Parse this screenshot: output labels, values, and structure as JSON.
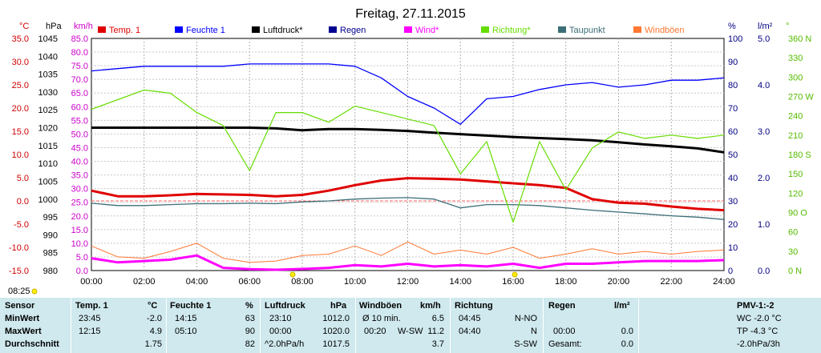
{
  "title": "Freitag, 27.11.2015",
  "axis_units": {
    "temp": "°C",
    "press": "hPa",
    "wind": "km/h",
    "pct": "%",
    "rain": "l/m²",
    "dir": "°"
  },
  "time_stamp": "08:25",
  "legend": [
    {
      "label": "Temp. 1",
      "color": "#e00000"
    },
    {
      "label": "Feuchte 1",
      "color": "#0000ff"
    },
    {
      "label": "Luftdruck*",
      "color": "#000000"
    },
    {
      "label": "Regen",
      "color": "#000090"
    },
    {
      "label": "Wind*",
      "color": "#ff00ff"
    },
    {
      "label": "Richtung*",
      "color": "#66dd00"
    },
    {
      "label": "Taupunkt",
      "color": "#3c6e78"
    },
    {
      "label": "Windböen",
      "color": "#ff7733"
    }
  ],
  "chart_data": {
    "type": "line",
    "title": "Freitag, 27.11.2015",
    "x_ticks": [
      "00:00",
      "02:00",
      "04:00",
      "06:00",
      "08:00",
      "10:00",
      "12:00",
      "14:00",
      "16:00",
      "18:00",
      "20:00",
      "22:00",
      "24:00"
    ],
    "axes": {
      "temp": {
        "label": "°C",
        "ticks": [
          "35.0",
          "30.0",
          "25.0",
          "20.0",
          "15.0",
          "10.0",
          "5.0",
          "0.0",
          "-5.0",
          "-10.0",
          "-15.0"
        ],
        "range": [
          -15,
          35
        ]
      },
      "press": {
        "label": "hPa",
        "ticks": [
          "1045",
          "1040",
          "1035",
          "1030",
          "1025",
          "1020",
          "1015",
          "1010",
          "1005",
          "1000",
          "995",
          "990",
          "985",
          "980"
        ],
        "range": [
          980,
          1045
        ]
      },
      "wind": {
        "label": "km/h",
        "ticks": [
          "85.0",
          "80.0",
          "75.0",
          "70.0",
          "65.0",
          "60.0",
          "55.0",
          "50.0",
          "45.0",
          "40.0",
          "35.0",
          "30.0",
          "25.0",
          "20.0",
          "15.0",
          "10.0",
          "5.0",
          "0.0"
        ],
        "range": [
          0,
          85
        ]
      },
      "pct": {
        "label": "%",
        "ticks": [
          "100",
          "90",
          "80",
          "70",
          "60",
          "50",
          "40",
          "30",
          "20",
          "10",
          "0"
        ],
        "range": [
          0,
          100
        ]
      },
      "rain": {
        "label": "l/m²",
        "ticks": [
          "5.0",
          "4.0",
          "3.0",
          "2.0",
          "1.0",
          "0.0"
        ],
        "range": [
          0,
          5
        ]
      },
      "dir": {
        "label": "°",
        "ticks": [
          "360 N",
          "330",
          "300",
          "270 W",
          "240",
          "210",
          "180 S",
          "150",
          "120",
          "90 O",
          "60",
          "30",
          "0 N"
        ],
        "range": [
          0,
          360
        ]
      }
    },
    "series": [
      {
        "name": "Temp. 1",
        "axis": "temp",
        "x": [
          0,
          1,
          2,
          3,
          4,
          5,
          6,
          7,
          8,
          9,
          10,
          11,
          12,
          13,
          14,
          15,
          16,
          17,
          18,
          19,
          20,
          21,
          22,
          23,
          24
        ],
        "y": [
          2.2,
          1.0,
          1.0,
          1.2,
          1.5,
          1.4,
          1.3,
          1.0,
          1.3,
          2.2,
          3.4,
          4.4,
          4.9,
          4.8,
          4.6,
          4.2,
          3.8,
          3.4,
          2.8,
          0.4,
          -0.4,
          -0.6,
          -1.2,
          -1.7,
          -2.0
        ]
      },
      {
        "name": "Feuchte 1",
        "axis": "pct",
        "x": [
          0,
          1,
          2,
          3,
          4,
          5,
          6,
          7,
          8,
          9,
          10,
          11,
          12,
          13,
          14,
          15,
          16,
          17,
          18,
          19,
          20,
          21,
          22,
          23,
          24
        ],
        "y": [
          86,
          87,
          88,
          88,
          88,
          88,
          89,
          89,
          89,
          89,
          88,
          83,
          75,
          70,
          63,
          74,
          75,
          78,
          80,
          81,
          79,
          80,
          82,
          82,
          83
        ]
      },
      {
        "name": "Luftdruck*",
        "axis": "press",
        "x": [
          0,
          1,
          2,
          3,
          4,
          5,
          6,
          7,
          8,
          9,
          10,
          11,
          12,
          13,
          14,
          15,
          16,
          17,
          18,
          19,
          20,
          21,
          22,
          23,
          24
        ],
        "y": [
          1020.0,
          1020.0,
          1020.0,
          1020.0,
          1020.0,
          1020.0,
          1020.0,
          1019.8,
          1019.3,
          1019.6,
          1019.6,
          1019.4,
          1019.1,
          1018.6,
          1018.2,
          1017.8,
          1017.4,
          1017.1,
          1016.8,
          1016.5,
          1015.9,
          1015.3,
          1014.8,
          1014.2,
          1013.1
        ]
      },
      {
        "name": "Taupunkt",
        "axis": "temp",
        "x": [
          0,
          1,
          2,
          3,
          4,
          5,
          6,
          7,
          8,
          9,
          10,
          11,
          12,
          13,
          14,
          15,
          16,
          17,
          18,
          19,
          20,
          21,
          22,
          23,
          24
        ],
        "y": [
          -0.5,
          -1.0,
          -1.0,
          -0.8,
          -0.6,
          -0.6,
          -0.5,
          -0.6,
          -0.2,
          0.0,
          0.4,
          0.6,
          0.7,
          0.4,
          -1.5,
          -0.8,
          -0.8,
          -1.0,
          -1.5,
          -2.0,
          -2.4,
          -2.8,
          -3.2,
          -3.5,
          -4.0
        ]
      },
      {
        "name": "Richtung*",
        "axis": "dir",
        "x": [
          0,
          1,
          2,
          3,
          4,
          5,
          6,
          7,
          8,
          9,
          10,
          11,
          12,
          13,
          14,
          15,
          16,
          17,
          18,
          19,
          20,
          21,
          22,
          23,
          24
        ],
        "y": [
          250,
          265,
          280,
          275,
          245,
          225,
          155,
          245,
          245,
          230,
          255,
          245,
          235,
          225,
          150,
          200,
          75,
          200,
          125,
          190,
          215,
          205,
          210,
          205,
          210
        ]
      },
      {
        "name": "Wind*",
        "axis": "wind",
        "x": [
          0,
          1,
          2,
          3,
          4,
          5,
          6,
          7,
          8,
          9,
          10,
          11,
          12,
          13,
          14,
          15,
          16,
          17,
          18,
          19,
          20,
          21,
          22,
          23,
          24
        ],
        "y": [
          4.5,
          3.0,
          3.5,
          4.0,
          5.5,
          1.0,
          0.5,
          0.3,
          0.6,
          1.0,
          2.0,
          1.5,
          2.5,
          1.5,
          2.0,
          1.5,
          2.5,
          1.0,
          2.5,
          2.5,
          3.0,
          3.5,
          3.5,
          3.5,
          3.8
        ]
      },
      {
        "name": "Windböen",
        "axis": "wind",
        "x": [
          0,
          1,
          2,
          3,
          4,
          5,
          6,
          7,
          8,
          9,
          10,
          11,
          12,
          13,
          14,
          15,
          16,
          17,
          18,
          19,
          20,
          21,
          22,
          23,
          24
        ],
        "y": [
          9.0,
          5.0,
          4.5,
          7.0,
          10.0,
          4.5,
          3.0,
          3.5,
          5.5,
          6.0,
          9.0,
          5.5,
          10.5,
          6.0,
          7.5,
          6.0,
          8.5,
          4.5,
          6.0,
          8.0,
          6.0,
          7.0,
          6.0,
          7.0,
          7.5
        ]
      }
    ]
  },
  "stats": {
    "row_labels": [
      "Sensor",
      "MinWert",
      "MaxWert",
      "Durchschnitt"
    ],
    "temp": {
      "header": "Temp. 1",
      "unit": "°C",
      "min_time": "23:45",
      "min": "-2.0",
      "max_time": "12:15",
      "max": "4.9",
      "avg": "1.75"
    },
    "hum": {
      "header": "Feuchte 1",
      "unit": "%",
      "min_time": "14:15",
      "min": "63",
      "max_time": "05:10",
      "max": "90",
      "avg": "82"
    },
    "press": {
      "header": "Luftdruck",
      "unit": "hPa",
      "min_time": "23:10",
      "min": "1012.0",
      "max_time": "00:00",
      "max": "1020.0",
      "trend": "^2.0hPa/h",
      "avg": "1017.5"
    },
    "gust": {
      "header": "Windböen",
      "unit": "km/h",
      "r1_label": "Ø 10 min.",
      "r1_val": "6.5",
      "r2_time": "00:20",
      "r2_dir": "W-SW",
      "r2_val": "11.2",
      "avg": "3.7"
    },
    "dir": {
      "header": "Richtung",
      "r1_time": "04:45",
      "r1_val": "N-NO",
      "r2_time": "04:40",
      "r2_val": "N",
      "avg": "S-SW"
    },
    "rain": {
      "header": "Regen",
      "unit": "l/m²",
      "r2_time": "00:00",
      "r2_val": "0.0",
      "r3_label": "Gesamt:",
      "r3_val": "0.0"
    },
    "pmv": {
      "header": "PMV-1:-2",
      "wc": "WC -2.0 °C",
      "tp": "TP -4.3 °C",
      "trend": "-2.0hPa/3h"
    }
  }
}
